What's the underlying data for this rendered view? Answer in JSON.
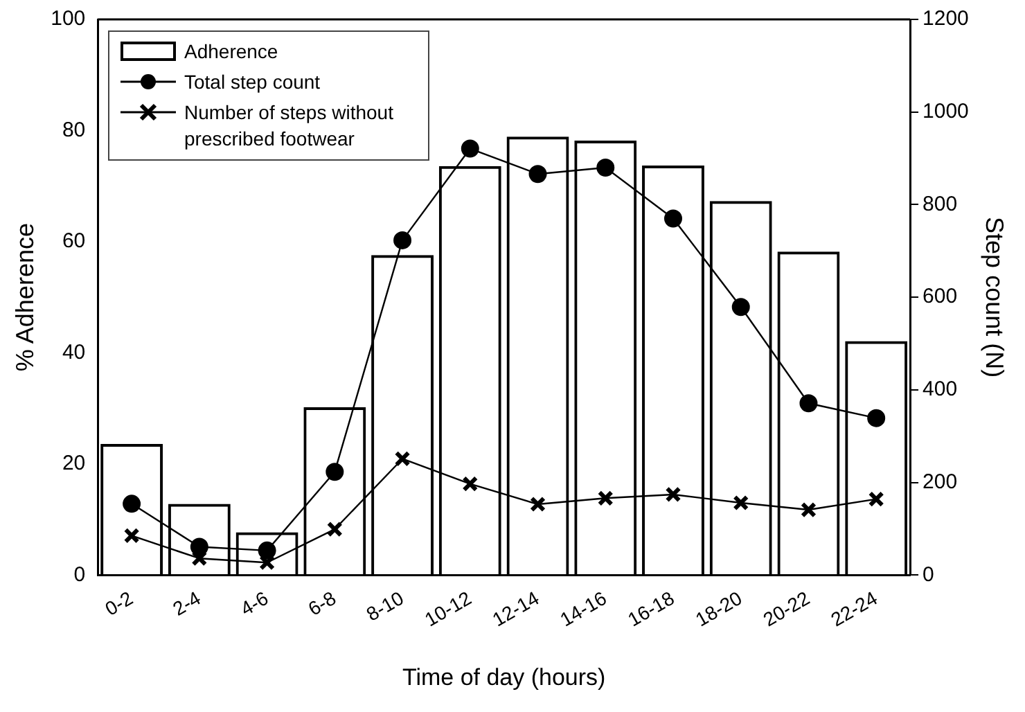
{
  "chart_data": {
    "type": "bar",
    "xlabel": "Time of day (hours)",
    "ylabel": "% Adherence",
    "y2label": "Step count (N)",
    "categories": [
      "0-2",
      "2-4",
      "4-6",
      "6-8",
      "8-10",
      "10-12",
      "12-14",
      "14-16",
      "16-18",
      "18-20",
      "20-22",
      "22-24"
    ],
    "series": [
      {
        "name": "Adherence",
        "color": "#000000",
        "values": [
          23.6,
          12.8,
          7.7,
          30.2,
          57.6,
          73.6,
          78.9,
          78.2,
          73.7,
          67.3,
          58.2,
          42.1
        ]
      },
      {
        "name": "Total step count",
        "type": "line",
        "axis": "y2",
        "marker": "circle",
        "color": "#000000",
        "values": [
          154,
          61,
          53,
          223,
          723,
          921,
          866,
          880,
          770,
          579,
          371,
          339
        ]
      },
      {
        "name": "Number of steps without prescribed footwear",
        "type": "line",
        "axis": "y2",
        "marker": "cross",
        "color": "#000000",
        "values": [
          85,
          36,
          27,
          99,
          251,
          197,
          153,
          166,
          174,
          156,
          141,
          164
        ]
      }
    ],
    "ylim": [
      0,
      100
    ],
    "yticks": [
      0,
      20,
      40,
      60,
      80,
      100
    ],
    "y2lim": [
      0,
      1200
    ],
    "y2ticks": [
      0,
      200,
      400,
      600,
      800,
      1000,
      1200
    ],
    "grid": false,
    "legend": "top left",
    "line_style": "solid"
  }
}
